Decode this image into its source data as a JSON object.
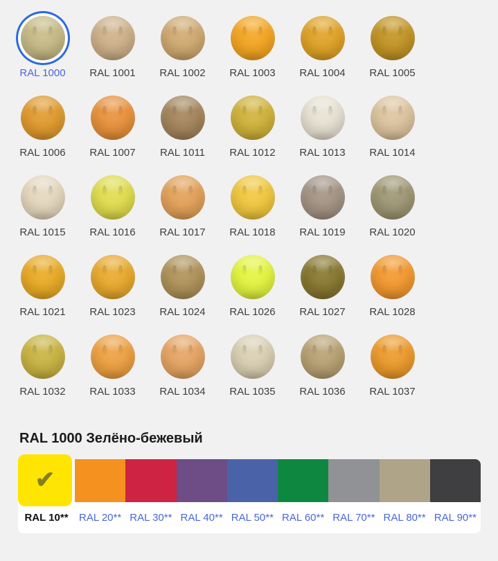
{
  "theme": {
    "page_bg": "#f1f1f2",
    "panel_bg": "#ffffff",
    "link_color": "#4a66d9",
    "ring_color": "#2b6add",
    "label_color": "#3e3e3e",
    "title_color": "#1b1b1b",
    "check_color": "#857e1f"
  },
  "title": "RAL 1000 Зелёно-бежевый",
  "grid": {
    "selected": "RAL 1000",
    "items": [
      {
        "label": "RAL 1000",
        "color": "#C6BA85",
        "selected": true
      },
      {
        "label": "RAL 1001",
        "color": "#CDB089",
        "selected": false
      },
      {
        "label": "RAL 1002",
        "color": "#CFA970",
        "selected": false
      },
      {
        "label": "RAL 1003",
        "color": "#F4A521",
        "selected": false
      },
      {
        "label": "RAL 1004",
        "color": "#DFA226",
        "selected": false
      },
      {
        "label": "RAL 1005",
        "color": "#C29424",
        "selected": false
      },
      {
        "label": "RAL 1006",
        "color": "#E09A2E",
        "selected": false
      },
      {
        "label": "RAL 1007",
        "color": "#E8913B",
        "selected": false
      },
      {
        "label": "RAL 1011",
        "color": "#A3855C",
        "selected": false
      },
      {
        "label": "RAL 1012",
        "color": "#CFB23A",
        "selected": false
      },
      {
        "label": "RAL 1013",
        "color": "#E6E1D2",
        "selected": false
      },
      {
        "label": "RAL 1014",
        "color": "#DCC49E",
        "selected": false
      },
      {
        "label": "RAL 1015",
        "color": "#E4D7BE",
        "selected": false
      },
      {
        "label": "RAL 1016",
        "color": "#E0DC4E",
        "selected": false
      },
      {
        "label": "RAL 1017",
        "color": "#E2A159",
        "selected": false
      },
      {
        "label": "RAL 1018",
        "color": "#F0C73E",
        "selected": false
      },
      {
        "label": "RAL 1019",
        "color": "#A39384",
        "selected": false
      },
      {
        "label": "RAL 1020",
        "color": "#9E9674",
        "selected": false
      },
      {
        "label": "RAL 1021",
        "color": "#E8AA25",
        "selected": false
      },
      {
        "label": "RAL 1023",
        "color": "#E8A92D",
        "selected": false
      },
      {
        "label": "RAL 1024",
        "color": "#AE9259",
        "selected": false
      },
      {
        "label": "RAL 1026",
        "color": "#E3F43F",
        "selected": false
      },
      {
        "label": "RAL 1027",
        "color": "#877730",
        "selected": false
      },
      {
        "label": "RAL 1028",
        "color": "#F2982F",
        "selected": false
      },
      {
        "label": "RAL 1032",
        "color": "#C9B342",
        "selected": false
      },
      {
        "label": "RAL 1033",
        "color": "#EDA041",
        "selected": false
      },
      {
        "label": "RAL 1034",
        "color": "#E5A463",
        "selected": false
      },
      {
        "label": "RAL 1035",
        "color": "#D9CFB2",
        "selected": false
      },
      {
        "label": "RAL 1036",
        "color": "#B7A172",
        "selected": false
      },
      {
        "label": "RAL 1037",
        "color": "#EC9A2B",
        "selected": false
      }
    ]
  },
  "group_bar": {
    "selected": "RAL 10**",
    "check_icon": "✔",
    "tabs": [
      {
        "label": "RAL 10**",
        "color": "#FFE501",
        "selected": true
      },
      {
        "label": "RAL 20**",
        "color": "#F5921F",
        "selected": false
      },
      {
        "label": "RAL 30**",
        "color": "#CE2343",
        "selected": false
      },
      {
        "label": "RAL 40**",
        "color": "#6E4C86",
        "selected": false
      },
      {
        "label": "RAL 50**",
        "color": "#4A63A8",
        "selected": false
      },
      {
        "label": "RAL 60**",
        "color": "#0E8840",
        "selected": false
      },
      {
        "label": "RAL 70**",
        "color": "#909295",
        "selected": false
      },
      {
        "label": "RAL 80**",
        "color": "#AFA388",
        "selected": false
      },
      {
        "label": "RAL 90**",
        "color": "#3F3E40",
        "selected": false
      }
    ]
  }
}
